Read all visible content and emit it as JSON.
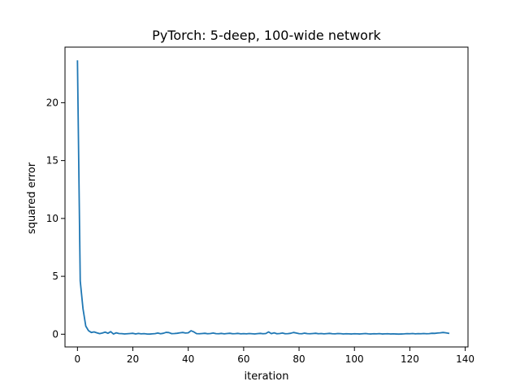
{
  "chart_data": {
    "type": "line",
    "title": "PyTorch: 5-deep, 100-wide network",
    "xlabel": "iteration",
    "ylabel": "squared error",
    "xlim": [
      -4.5,
      141
    ],
    "ylim": [
      -1.1,
      24.8
    ],
    "xticks": [
      0,
      20,
      40,
      60,
      80,
      100,
      120,
      140
    ],
    "yticks": [
      0,
      5,
      10,
      15,
      20
    ],
    "grid": false,
    "line_color": "#1f77b4",
    "series": [
      {
        "x": [
          0,
          1,
          2,
          3,
          4,
          5,
          6,
          7,
          8,
          9,
          10,
          11,
          12,
          13,
          14,
          15,
          16,
          17,
          18,
          19,
          20,
          21,
          22,
          23,
          24,
          25,
          26,
          27,
          28,
          29,
          30,
          31,
          32,
          33,
          34,
          35,
          36,
          37,
          38,
          39,
          40,
          41,
          42,
          43,
          44,
          45,
          46,
          47,
          48,
          49,
          50,
          51,
          52,
          53,
          54,
          55,
          56,
          57,
          58,
          59,
          60,
          61,
          62,
          63,
          64,
          65,
          66,
          67,
          68,
          69,
          70,
          71,
          72,
          73,
          74,
          75,
          76,
          77,
          78,
          79,
          80,
          81,
          82,
          83,
          84,
          85,
          86,
          87,
          88,
          89,
          90,
          91,
          92,
          93,
          94,
          95,
          96,
          97,
          98,
          99,
          100,
          101,
          102,
          103,
          104,
          105,
          106,
          107,
          108,
          109,
          110,
          111,
          112,
          113,
          114,
          115,
          116,
          117,
          118,
          119,
          120,
          121,
          122,
          123,
          124,
          125,
          126,
          127,
          128,
          129,
          130,
          131,
          132,
          133,
          134
        ],
        "y": [
          23.6,
          4.6,
          2.2,
          0.7,
          0.3,
          0.15,
          0.2,
          0.12,
          0.05,
          0.1,
          0.18,
          0.08,
          0.22,
          0.02,
          0.12,
          0.06,
          0.05,
          0.02,
          0.04,
          0.06,
          0.08,
          0.02,
          0.07,
          0.03,
          0.05,
          0.02,
          0.01,
          0.03,
          0.05,
          0.1,
          0.04,
          0.08,
          0.16,
          0.14,
          0.05,
          0.06,
          0.08,
          0.12,
          0.15,
          0.1,
          0.12,
          0.3,
          0.2,
          0.05,
          0.04,
          0.06,
          0.08,
          0.04,
          0.06,
          0.1,
          0.05,
          0.04,
          0.07,
          0.03,
          0.06,
          0.08,
          0.04,
          0.05,
          0.07,
          0.03,
          0.05,
          0.03,
          0.06,
          0.04,
          0.02,
          0.05,
          0.07,
          0.04,
          0.06,
          0.2,
          0.05,
          0.12,
          0.04,
          0.06,
          0.1,
          0.04,
          0.05,
          0.08,
          0.15,
          0.1,
          0.05,
          0.04,
          0.09,
          0.05,
          0.04,
          0.06,
          0.08,
          0.04,
          0.06,
          0.03,
          0.05,
          0.07,
          0.04,
          0.03,
          0.06,
          0.05,
          0.02,
          0.04,
          0.03,
          0.02,
          0.04,
          0.03,
          0.02,
          0.04,
          0.06,
          0.03,
          0.02,
          0.04,
          0.03,
          0.05,
          0.02,
          0.03,
          0.04,
          0.02,
          0.03,
          0.02,
          0.01,
          0.02,
          0.03,
          0.05,
          0.04,
          0.06,
          0.03,
          0.05,
          0.04,
          0.06,
          0.04,
          0.05,
          0.08,
          0.07,
          0.1,
          0.12,
          0.15,
          0.12,
          0.08
        ]
      }
    ]
  }
}
